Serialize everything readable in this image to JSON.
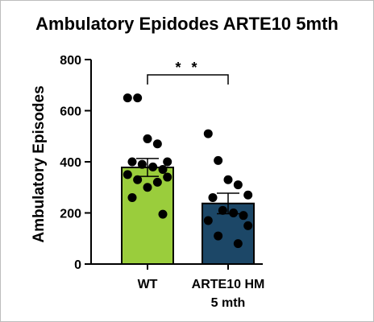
{
  "chart_data": {
    "type": "bar",
    "title": "Ambulatory Epidodes ARTE10 5mth",
    "ylabel": "Ambulatory Episodes",
    "xlabel": "",
    "ylim": [
      0,
      800
    ],
    "yticks": [
      "0",
      "200",
      "400",
      "600",
      "800"
    ],
    "categories": [
      "WT",
      "ARTE10 HM",
      "5 mth"
    ],
    "bars": [
      {
        "label": "WT",
        "value": 378,
        "sem": 35,
        "color": "#9ACD3C",
        "points": [
          650,
          650,
          490,
          470,
          400,
          400,
          390,
          380,
          370,
          350,
          340,
          330,
          320,
          300,
          260,
          195
        ]
      },
      {
        "label": "ARTE10 HM\n5 mth",
        "value": 237,
        "sem": 40,
        "color": "#1C4767",
        "points": [
          510,
          405,
          330,
          310,
          270,
          260,
          210,
          200,
          190,
          170,
          150,
          110,
          80
        ]
      }
    ],
    "significance": {
      "label": "* *",
      "between": [
        0,
        1
      ],
      "y": 740
    }
  },
  "colors": {
    "wt": "#9ACD3C",
    "hm": "#1C4767",
    "axis": "#000000"
  }
}
